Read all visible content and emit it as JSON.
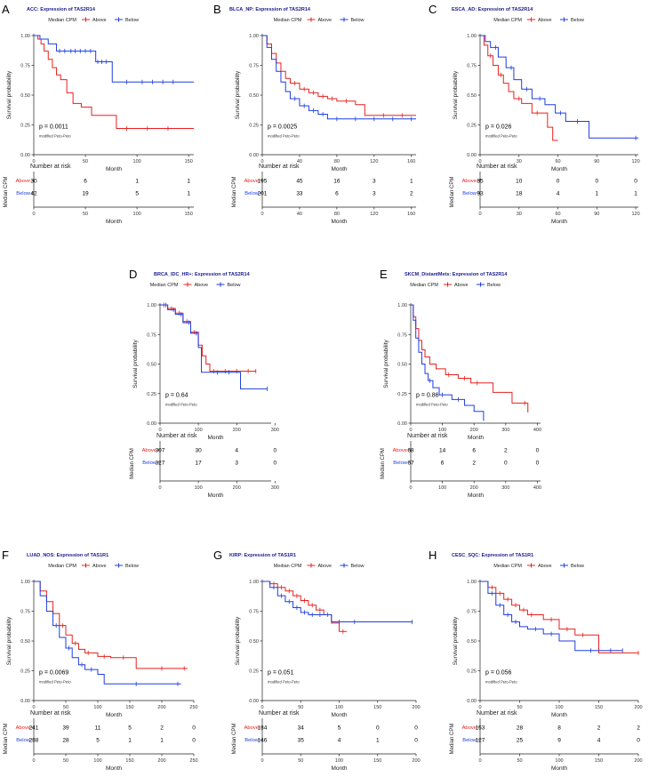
{
  "figure": {
    "legend_title": "Median CPM",
    "group_labels": [
      "Above",
      "Below"
    ],
    "y_axis_label": "Survival probability",
    "x_axis_label": "Month",
    "risk_title": "Number at risk",
    "risk_y_label": "Median CPM",
    "test_note": "modified Peto-Peto",
    "colors": {
      "above": "#e8211d",
      "below": "#1f3ee0",
      "title": "#1a1a8c",
      "axis": "#222222"
    }
  },
  "chart_data": [
    {
      "panel": "A",
      "type": "line",
      "title": "ACC: Expression of TAS2R14",
      "xlabel": "Month",
      "ylabel": "Survival probability",
      "xlim": [
        0,
        155
      ],
      "x_ticks": [
        0,
        50,
        100,
        150
      ],
      "ylim": [
        0,
        1
      ],
      "y_ticks": [
        0.0,
        0.25,
        0.5,
        0.75,
        1.0
      ],
      "p_value": "p = 0.0011",
      "series": [
        {
          "name": "Above",
          "x": [
            0,
            4,
            7,
            10,
            14,
            18,
            22,
            26,
            32,
            38,
            46,
            56,
            80,
            155
          ],
          "y": [
            1.0,
            0.97,
            0.93,
            0.87,
            0.8,
            0.73,
            0.67,
            0.63,
            0.52,
            0.43,
            0.4,
            0.33,
            0.22,
            0.22
          ],
          "censor_x": [
            90,
            110,
            130
          ]
        },
        {
          "name": "Below",
          "x": [
            0,
            6,
            14,
            22,
            60,
            76,
            155
          ],
          "y": [
            1.0,
            0.97,
            0.93,
            0.87,
            0.78,
            0.61,
            0.61
          ],
          "censor_x": [
            25,
            30,
            36,
            40,
            45,
            50,
            55,
            62,
            66,
            70,
            90,
            105,
            115,
            125,
            135
          ]
        }
      ],
      "risk_table": {
        "x": [
          0,
          50,
          100,
          150
        ],
        "Above": [
          30,
          6,
          1,
          1
        ],
        "Below": [
          42,
          19,
          5,
          1
        ]
      }
    },
    {
      "panel": "B",
      "type": "line",
      "title": "BLCA_NP: Expression of TAS2R14",
      "xlabel": "Month",
      "ylabel": "Survival probability",
      "xlim": [
        0,
        165
      ],
      "x_ticks": [
        0,
        40,
        80,
        120,
        160
      ],
      "ylim": [
        0,
        1
      ],
      "y_ticks": [
        0.0,
        0.25,
        0.5,
        0.75,
        1.0
      ],
      "p_value": "p = 0.0025",
      "series": [
        {
          "name": "Above",
          "x": [
            0,
            5,
            10,
            15,
            20,
            25,
            30,
            40,
            50,
            60,
            70,
            80,
            100,
            110,
            165
          ],
          "y": [
            1.0,
            0.93,
            0.85,
            0.77,
            0.7,
            0.64,
            0.6,
            0.55,
            0.52,
            0.49,
            0.47,
            0.45,
            0.42,
            0.33,
            0.33
          ],
          "censor_x": [
            35,
            45,
            55,
            65,
            75,
            90,
            130,
            150
          ]
        },
        {
          "name": "Below",
          "x": [
            0,
            5,
            10,
            15,
            20,
            25,
            30,
            40,
            50,
            60,
            70,
            165
          ],
          "y": [
            1.0,
            0.9,
            0.8,
            0.7,
            0.61,
            0.53,
            0.47,
            0.41,
            0.37,
            0.34,
            0.3,
            0.3
          ],
          "censor_x": [
            35,
            45,
            55,
            65,
            80,
            100,
            120,
            140,
            160
          ]
        }
      ],
      "risk_table": {
        "x": [
          0,
          40,
          80,
          120,
          160
        ],
        "Above": [
          195,
          45,
          16,
          3,
          1
        ],
        "Below": [
          201,
          33,
          6,
          3,
          2
        ]
      }
    },
    {
      "panel": "C",
      "type": "line",
      "title": "ESCA_AD: Expression of TAS2R14",
      "xlabel": "Month",
      "ylabel": "Survival probability",
      "xlim": [
        0,
        122
      ],
      "x_ticks": [
        0,
        30,
        60,
        90,
        120
      ],
      "ylim": [
        0,
        1
      ],
      "y_ticks": [
        0.0,
        0.25,
        0.5,
        0.75,
        1.0
      ],
      "p_value": "p = 0.026",
      "series": [
        {
          "name": "Above",
          "x": [
            0,
            3,
            6,
            10,
            14,
            18,
            22,
            26,
            32,
            40,
            52,
            56,
            60
          ],
          "y": [
            1.0,
            0.92,
            0.83,
            0.75,
            0.67,
            0.6,
            0.53,
            0.47,
            0.43,
            0.35,
            0.23,
            0.12,
            0.12
          ],
          "censor_x": [
            8,
            16,
            30,
            44
          ]
        },
        {
          "name": "Below",
          "x": [
            0,
            4,
            8,
            14,
            20,
            26,
            32,
            40,
            50,
            58,
            66,
            84,
            122
          ],
          "y": [
            1.0,
            0.95,
            0.9,
            0.82,
            0.73,
            0.63,
            0.55,
            0.47,
            0.42,
            0.35,
            0.28,
            0.14,
            0.14
          ],
          "censor_x": [
            12,
            24,
            36,
            46,
            62,
            75,
            120
          ]
        }
      ],
      "risk_table": {
        "x": [
          0,
          30,
          60,
          90,
          120
        ],
        "Above": [
          85,
          10,
          0,
          0,
          0
        ],
        "Below": [
          93,
          18,
          4,
          1,
          1
        ]
      }
    },
    {
      "panel": "D",
      "type": "line",
      "title": "BRCA_IDC_HR+: Expression of TAS2R14",
      "xlabel": "Month",
      "ylabel": "Survival probability",
      "xlim": [
        0,
        290
      ],
      "x_ticks": [
        0,
        100,
        200,
        300
      ],
      "ylim": [
        0,
        1
      ],
      "y_ticks": [
        0.0,
        0.25,
        0.5,
        0.75,
        1.0
      ],
      "p_value": "p = 0.64",
      "series": [
        {
          "name": "Above",
          "x": [
            0,
            20,
            40,
            60,
            80,
            100,
            110,
            120,
            130,
            150,
            250
          ],
          "y": [
            1.0,
            0.97,
            0.93,
            0.86,
            0.77,
            0.66,
            0.57,
            0.5,
            0.44,
            0.44,
            0.44
          ],
          "censor_x": [
            10,
            30,
            50,
            70,
            90,
            140,
            170,
            200,
            230,
            250
          ]
        },
        {
          "name": "Below",
          "x": [
            0,
            20,
            40,
            60,
            80,
            100,
            108,
            210,
            280
          ],
          "y": [
            1.0,
            0.96,
            0.92,
            0.85,
            0.76,
            0.64,
            0.43,
            0.29,
            0.29
          ],
          "censor_x": [
            15,
            35,
            55,
            75,
            95,
            150,
            180,
            280
          ]
        }
      ],
      "risk_table": {
        "x": [
          0,
          100,
          200,
          300
        ],
        "Above": [
          307,
          30,
          4,
          0
        ],
        "Below": [
          327,
          17,
          3,
          0
        ]
      }
    },
    {
      "panel": "E",
      "type": "line",
      "title": "SKCM_DistantMets: Expression of TAS2R14",
      "xlabel": "Month",
      "ylabel": "Survival probability",
      "xlim": [
        0,
        410
      ],
      "x_ticks": [
        0,
        100,
        200,
        300,
        400
      ],
      "ylim": [
        0,
        1
      ],
      "y_ticks": [
        0.0,
        0.25,
        0.5,
        0.75,
        1.0
      ],
      "p_value": "p = 0.86",
      "series": [
        {
          "name": "Above",
          "x": [
            0,
            8,
            16,
            25,
            35,
            45,
            60,
            80,
            110,
            150,
            190,
            260,
            320,
            370
          ],
          "y": [
            1.0,
            0.9,
            0.8,
            0.7,
            0.62,
            0.56,
            0.5,
            0.46,
            0.41,
            0.38,
            0.34,
            0.26,
            0.17,
            0.09
          ],
          "censor_x": [
            120,
            170,
            210,
            360
          ]
        },
        {
          "name": "Below",
          "x": [
            0,
            8,
            16,
            25,
            35,
            45,
            55,
            70,
            90,
            130,
            170,
            200,
            230
          ],
          "y": [
            1.0,
            0.87,
            0.72,
            0.6,
            0.5,
            0.42,
            0.36,
            0.3,
            0.24,
            0.2,
            0.15,
            0.1,
            0.02
          ],
          "censor_x": [
            60,
            100,
            150
          ]
        }
      ],
      "risk_table": {
        "x": [
          0,
          100,
          200,
          300,
          400
        ],
        "Above": [
          68,
          14,
          6,
          2,
          0
        ],
        "Below": [
          67,
          6,
          2,
          0,
          0
        ]
      }
    },
    {
      "panel": "F",
      "type": "line",
      "title": "LUAD_NOS: Expression of TAS1R1",
      "xlabel": "Month",
      "ylabel": "Survival probability",
      "xlim": [
        0,
        250
      ],
      "x_ticks": [
        0,
        50,
        100,
        150,
        200,
        250
      ],
      "ylim": [
        0,
        1
      ],
      "y_ticks": [
        0.0,
        0.25,
        0.5,
        0.75,
        1.0
      ],
      "p_value": "p = 0.0069",
      "series": [
        {
          "name": "Above",
          "x": [
            0,
            10,
            20,
            30,
            40,
            50,
            60,
            70,
            80,
            100,
            120,
            160,
            240
          ],
          "y": [
            1.0,
            0.92,
            0.83,
            0.73,
            0.63,
            0.55,
            0.48,
            0.43,
            0.4,
            0.37,
            0.36,
            0.27,
            0.27
          ],
          "censor_x": [
            45,
            65,
            85,
            110,
            140,
            200,
            235
          ]
        },
        {
          "name": "Below",
          "x": [
            0,
            10,
            20,
            30,
            40,
            50,
            60,
            70,
            80,
            100,
            110,
            230
          ],
          "y": [
            1.0,
            0.88,
            0.75,
            0.63,
            0.53,
            0.44,
            0.36,
            0.3,
            0.26,
            0.22,
            0.14,
            0.14
          ],
          "censor_x": [
            35,
            55,
            75,
            90,
            160,
            225
          ]
        }
      ],
      "risk_table": {
        "x": [
          0,
          50,
          100,
          150,
          200,
          250
        ],
        "Above": [
          241,
          39,
          11,
          5,
          2,
          0
        ],
        "Below": [
          238,
          28,
          5,
          1,
          1,
          0
        ]
      }
    },
    {
      "panel": "G",
      "type": "line",
      "title": "KIRP: Expression of TAS1R1",
      "xlabel": "Month",
      "ylabel": "Survival probability",
      "xlim": [
        0,
        200
      ],
      "x_ticks": [
        0,
        50,
        100,
        150,
        200
      ],
      "ylim": [
        0,
        1
      ],
      "y_ticks": [
        0.0,
        0.25,
        0.5,
        0.75,
        1.0
      ],
      "p_value": "p = 0.051",
      "series": [
        {
          "name": "Above",
          "x": [
            0,
            10,
            20,
            30,
            40,
            50,
            60,
            70,
            80,
            90,
            100,
            110
          ],
          "y": [
            1.0,
            0.98,
            0.95,
            0.92,
            0.88,
            0.84,
            0.8,
            0.76,
            0.72,
            0.65,
            0.58,
            0.58
          ],
          "censor_x": [
            15,
            25,
            35,
            45,
            55,
            65,
            75,
            85,
            105
          ]
        },
        {
          "name": "Below",
          "x": [
            0,
            10,
            20,
            30,
            40,
            50,
            60,
            80,
            90,
            195
          ],
          "y": [
            1.0,
            0.95,
            0.88,
            0.83,
            0.78,
            0.74,
            0.72,
            0.72,
            0.66,
            0.66
          ],
          "censor_x": [
            15,
            25,
            35,
            45,
            55,
            65,
            75,
            100,
            120,
            195
          ]
        }
      ],
      "risk_table": {
        "x": [
          0,
          50,
          100,
          150,
          200
        ],
        "Above": [
          134,
          34,
          5,
          0,
          0
        ],
        "Below": [
          146,
          35,
          4,
          1,
          0
        ]
      }
    },
    {
      "panel": "H",
      "type": "line",
      "title": "CESC_SQC: Expression of TAS1R1",
      "xlabel": "Month",
      "ylabel": "Survival probability",
      "xlim": [
        0,
        200
      ],
      "x_ticks": [
        0,
        50,
        100,
        150,
        200
      ],
      "ylim": [
        0,
        1
      ],
      "y_ticks": [
        0.0,
        0.25,
        0.5,
        0.75,
        1.0
      ],
      "p_value": "p = 0.056",
      "series": [
        {
          "name": "Above",
          "x": [
            0,
            10,
            20,
            30,
            40,
            50,
            60,
            80,
            100,
            120,
            150,
            200
          ],
          "y": [
            1.0,
            0.95,
            0.9,
            0.85,
            0.8,
            0.76,
            0.72,
            0.68,
            0.6,
            0.55,
            0.4,
            0.4
          ],
          "censor_x": [
            15,
            25,
            35,
            45,
            55,
            65,
            90,
            110,
            130,
            200
          ]
        },
        {
          "name": "Below",
          "x": [
            0,
            10,
            20,
            30,
            40,
            50,
            60,
            80,
            100,
            120,
            180
          ],
          "y": [
            1.0,
            0.9,
            0.8,
            0.72,
            0.66,
            0.62,
            0.6,
            0.56,
            0.5,
            0.42,
            0.42
          ],
          "censor_x": [
            15,
            25,
            35,
            45,
            70,
            90,
            140,
            165,
            180
          ]
        }
      ],
      "risk_table": {
        "x": [
          0,
          50,
          100,
          150,
          200
        ],
        "Above": [
          153,
          28,
          8,
          2,
          2
        ],
        "Below": [
          127,
          25,
          9,
          4,
          0
        ]
      }
    }
  ]
}
